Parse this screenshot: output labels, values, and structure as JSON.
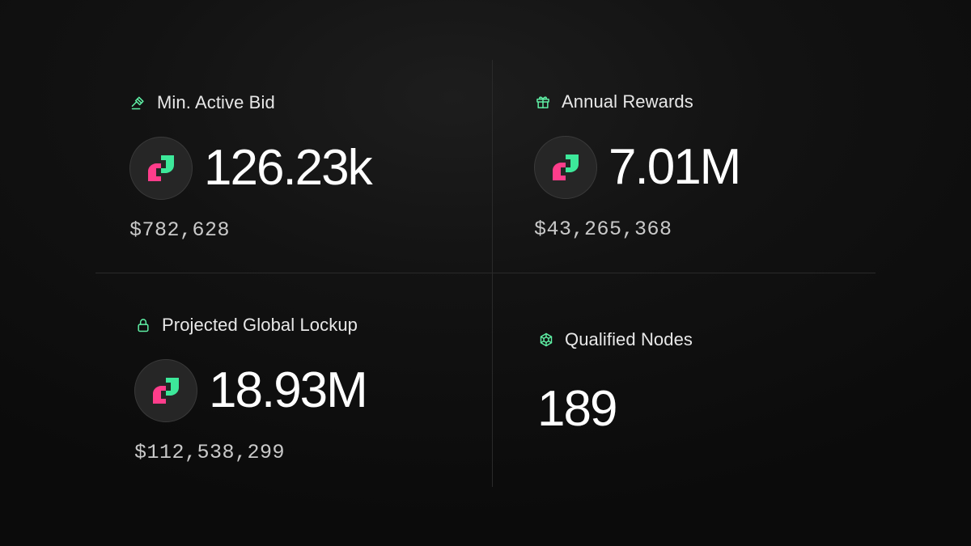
{
  "theme": {
    "background": "#0b0b0b",
    "accent_green": "#5ff0a5",
    "token_pink": "#ff3d8b",
    "token_green": "#3de89a"
  },
  "stats": {
    "min_active_bid": {
      "label": "Min. Active Bid",
      "icon": "gavel-icon",
      "value": "126.23k",
      "usd": "$782,628"
    },
    "annual_rewards": {
      "label": "Annual Rewards",
      "icon": "gift-icon",
      "value": "7.01M",
      "usd": "$43,265,368"
    },
    "projected_global_lockup": {
      "label": "Projected Global Lockup",
      "icon": "lock-icon",
      "value": "18.93M",
      "usd": "$112,538,299"
    },
    "qualified_nodes": {
      "label": "Qualified Nodes",
      "icon": "nodes-icon",
      "value": "189"
    }
  }
}
